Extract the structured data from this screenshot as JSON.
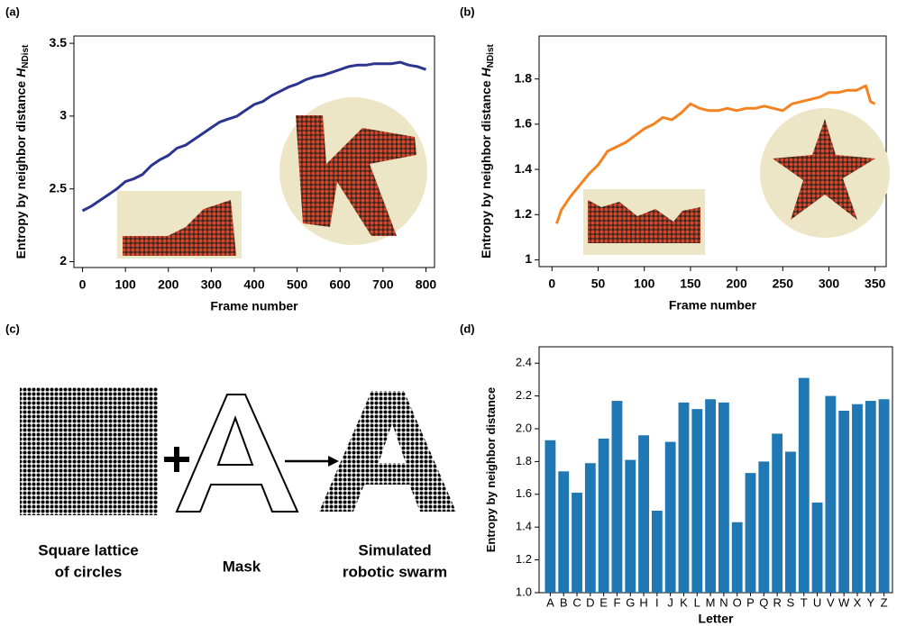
{
  "panel_labels": [
    "(a)",
    "(b)",
    "(c)",
    "(d)"
  ],
  "diagram": {
    "lattice_caption": [
      "Square lattice",
      "of circles"
    ],
    "mask_caption": [
      "Mask"
    ],
    "swarm_caption": [
      "Simulated",
      "robotic swarm"
    ]
  },
  "chart_data": [
    {
      "type": "line",
      "xlabel": "Frame number",
      "ylabel": "Entropy by neighbor distance",
      "ylabel_symbol": "H",
      "ylabel_subscript": "NDist",
      "color": "#2b3590",
      "xlim": [
        -20,
        820
      ],
      "ylim": [
        1.96,
        3.55
      ],
      "xticks": [
        0,
        100,
        200,
        300,
        400,
        500,
        600,
        700,
        800
      ],
      "yticks": [
        2,
        2.5,
        3,
        3.5
      ],
      "x": [
        0,
        20,
        40,
        60,
        80,
        100,
        120,
        140,
        160,
        180,
        200,
        220,
        240,
        260,
        280,
        300,
        320,
        340,
        360,
        380,
        400,
        420,
        440,
        460,
        480,
        500,
        520,
        540,
        560,
        580,
        600,
        620,
        640,
        660,
        680,
        700,
        720,
        740,
        760,
        780,
        800
      ],
      "values": [
        2.35,
        2.38,
        2.42,
        2.46,
        2.5,
        2.55,
        2.57,
        2.6,
        2.66,
        2.7,
        2.73,
        2.78,
        2.8,
        2.84,
        2.88,
        2.92,
        2.96,
        2.98,
        3.0,
        3.04,
        3.08,
        3.1,
        3.14,
        3.17,
        3.2,
        3.22,
        3.25,
        3.27,
        3.28,
        3.3,
        3.32,
        3.34,
        3.35,
        3.35,
        3.36,
        3.36,
        3.36,
        3.37,
        3.35,
        3.34,
        3.32
      ]
    },
    {
      "type": "line",
      "xlabel": "Frame number",
      "ylabel": "Entropy by neighbor distance",
      "ylabel_symbol": "H",
      "ylabel_subscript": "NDist",
      "color": "#f58220",
      "xlim": [
        -14,
        362
      ],
      "ylim": [
        0.97,
        1.99
      ],
      "xticks": [
        0,
        50,
        100,
        150,
        200,
        250,
        300,
        350
      ],
      "yticks": [
        1,
        1.2,
        1.4,
        1.6,
        1.8
      ],
      "x": [
        5,
        10,
        20,
        30,
        40,
        50,
        60,
        70,
        80,
        90,
        100,
        110,
        120,
        130,
        140,
        150,
        160,
        170,
        180,
        190,
        200,
        210,
        220,
        230,
        240,
        250,
        260,
        270,
        280,
        290,
        300,
        310,
        320,
        330,
        340,
        345,
        350
      ],
      "values": [
        1.16,
        1.22,
        1.28,
        1.33,
        1.38,
        1.42,
        1.48,
        1.5,
        1.52,
        1.55,
        1.58,
        1.6,
        1.63,
        1.62,
        1.65,
        1.69,
        1.67,
        1.66,
        1.66,
        1.67,
        1.66,
        1.67,
        1.67,
        1.68,
        1.67,
        1.66,
        1.69,
        1.7,
        1.71,
        1.72,
        1.74,
        1.74,
        1.75,
        1.75,
        1.77,
        1.7,
        1.69
      ]
    },
    {
      "type": "bar",
      "xlabel": "Letter",
      "ylabel": "Entropy by neighbor distance",
      "color": "#1f77b4",
      "ylim": [
        1.0,
        2.5
      ],
      "yticks": [
        {
          "value": 1.0,
          "label": "1.0"
        },
        1.2,
        1.4,
        1.6,
        1.8,
        {
          "value": 2.0,
          "label": "2.0"
        },
        2.2,
        2.4
      ],
      "categories": [
        "A",
        "B",
        "C",
        "D",
        "E",
        "F",
        "G",
        "H",
        "I",
        "J",
        "K",
        "L",
        "M",
        "N",
        "O",
        "P",
        "Q",
        "R",
        "S",
        "T",
        "U",
        "V",
        "W",
        "X",
        "Y",
        "Z"
      ],
      "values": [
        1.93,
        1.74,
        1.61,
        1.79,
        1.94,
        2.17,
        1.81,
        1.96,
        1.5,
        1.92,
        2.16,
        2.12,
        2.18,
        2.16,
        1.43,
        1.73,
        1.8,
        1.97,
        1.86,
        2.31,
        1.55,
        2.2,
        2.11,
        2.15,
        2.17,
        2.18
      ]
    }
  ]
}
